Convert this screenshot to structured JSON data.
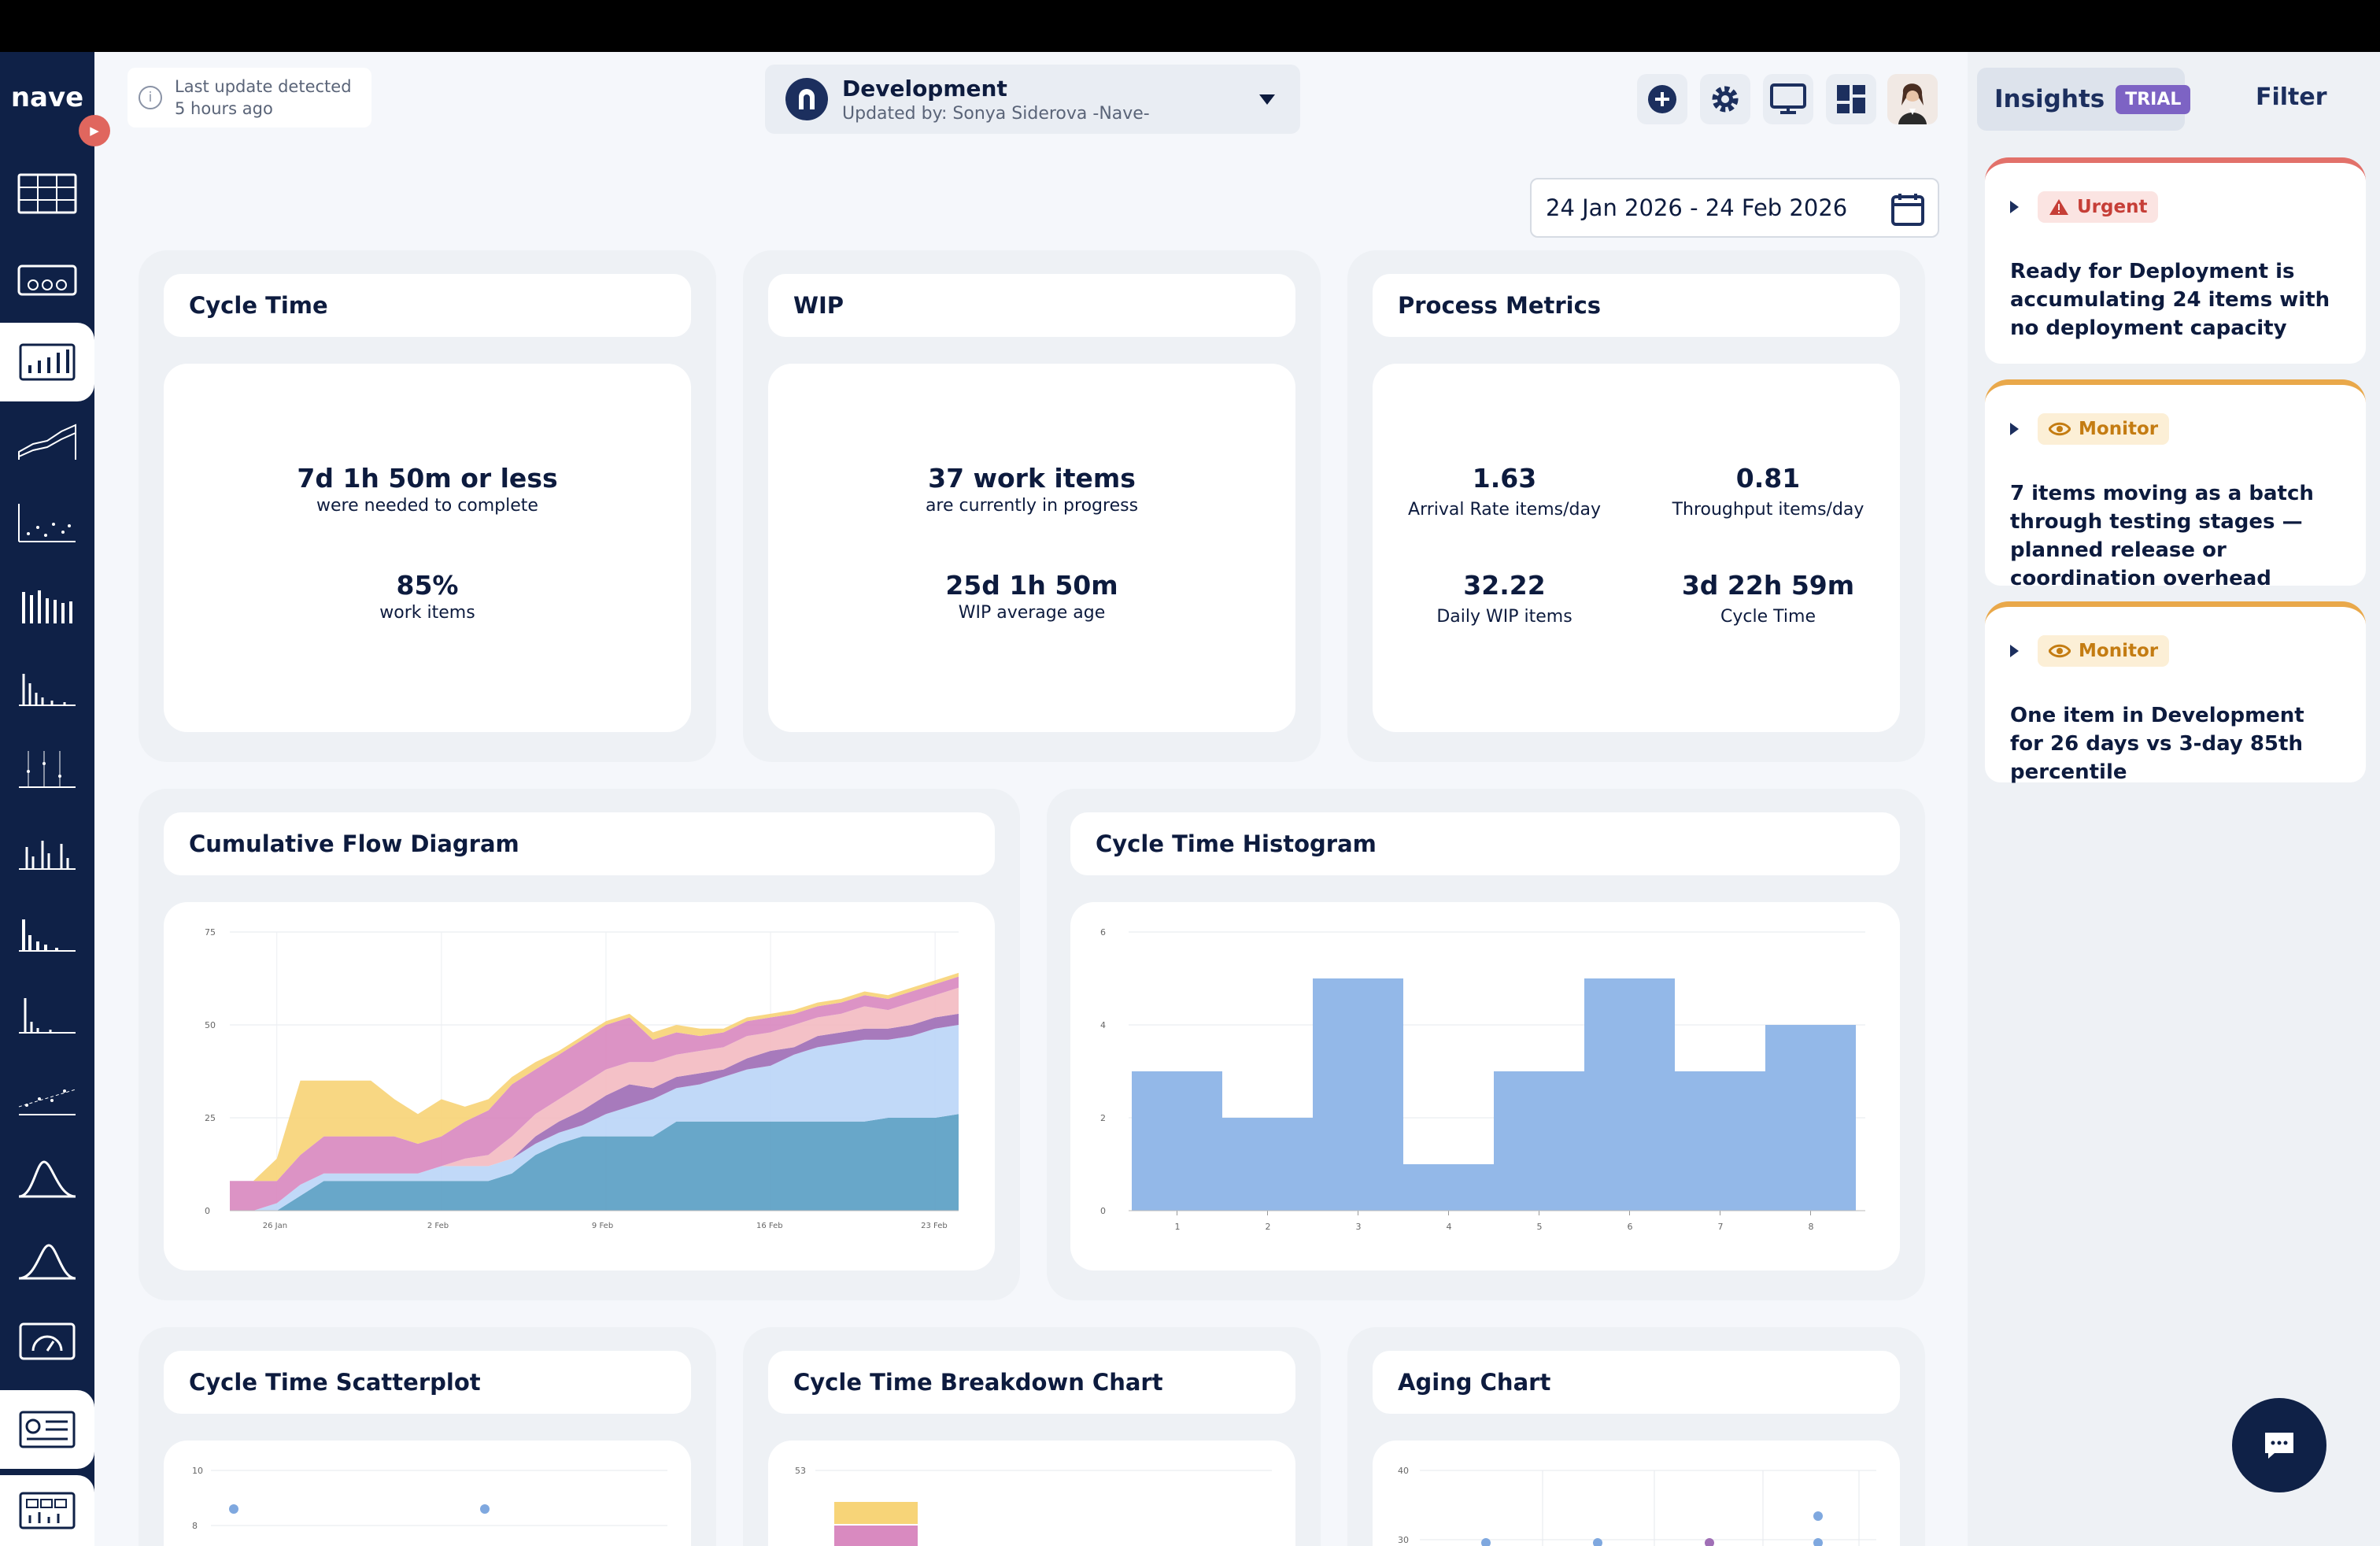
{
  "app": {
    "logo": "nave"
  },
  "header": {
    "last_update_line1": "Last update detected",
    "last_update_line2": "5 hours ago",
    "team_name": "Development",
    "team_updated_by": "Updated by: Sonya Siderova -Nave-"
  },
  "toolbar": {
    "icons": [
      "plus-circle-icon",
      "gear-icon",
      "monitor-icon",
      "dashboard-grid-icon",
      "user-avatar"
    ]
  },
  "date_range": "24 Jan 2026 - 24 Feb 2026",
  "cards": {
    "cycle_time": {
      "title": "Cycle Time",
      "big1": "7d 1h 50m or less",
      "sub1": "were needed to complete",
      "big2": "85%",
      "sub2": "work items"
    },
    "wip": {
      "title": "WIP",
      "big1": "37 work items",
      "sub1": "are currently in progress",
      "big2": "25d 1h 50m",
      "sub2": "WIP average age"
    },
    "process": {
      "title": "Process Metrics",
      "m1_value": "1.63",
      "m1_label": "Arrival Rate items/day",
      "m2_value": "0.81",
      "m2_label": "Throughput items/day",
      "m3_value": "32.22",
      "m3_label": "Daily WIP items",
      "m4_value": "3d 22h 59m",
      "m4_label": "Cycle Time"
    },
    "cfd_title": "Cumulative Flow Diagram",
    "histogram_title": "Cycle Time Histogram",
    "scatter_title": "Cycle Time Scatterplot",
    "breakdown_title": "Cycle Time Breakdown Chart",
    "aging_title": "Aging Chart"
  },
  "insights": {
    "label": "Insights",
    "trial": "TRIAL",
    "filter": "Filter",
    "items": [
      {
        "severity": "Urgent",
        "text": "Ready for Deployment is accumulating 24 items with no deployment capacity"
      },
      {
        "severity": "Monitor",
        "text": "7 items moving as a batch through testing stages — planned release or coordination overhead"
      },
      {
        "severity": "Monitor",
        "text": "One item in Development for 26 days vs 3-day 85th percentile"
      }
    ]
  },
  "colors": {
    "sidebar": "#0f2147",
    "accent_urgent": "#e2716a",
    "accent_monitor": "#e9a84a",
    "trial": "#7d63c4",
    "histogram_bar": "#93b8e8"
  },
  "chart_data": [
    {
      "type": "area",
      "title": "Cumulative Flow Diagram",
      "ylim": [
        0,
        75
      ],
      "yticks": [
        "0",
        "25",
        "50",
        "75"
      ],
      "xticks": [
        "26 Jan",
        "2 Feb",
        "9 Feb",
        "16 Feb",
        "23 Feb"
      ],
      "x": [
        "24 Jan",
        "25 Jan",
        "26 Jan",
        "27 Jan",
        "28 Jan",
        "29 Jan",
        "30 Jan",
        "31 Jan",
        "1 Feb",
        "2 Feb",
        "3 Feb",
        "4 Feb",
        "5 Feb",
        "6 Feb",
        "7 Feb",
        "8 Feb",
        "9 Feb",
        "10 Feb",
        "11 Feb",
        "12 Feb",
        "13 Feb",
        "14 Feb",
        "15 Feb",
        "16 Feb",
        "17 Feb",
        "18 Feb",
        "19 Feb",
        "20 Feb",
        "21 Feb",
        "22 Feb",
        "23 Feb",
        "24 Feb"
      ],
      "series": [
        {
          "color": "#5b9fc4",
          "values": [
            0,
            0,
            0,
            4,
            8,
            8,
            8,
            8,
            8,
            8,
            8,
            8,
            10,
            15,
            18,
            20,
            20,
            20,
            20,
            24,
            24,
            24,
            24,
            24,
            24,
            24,
            24,
            24,
            25,
            25,
            25,
            26
          ]
        },
        {
          "color": "#bcd6f7",
          "values": [
            0,
            0,
            2,
            3,
            2,
            2,
            2,
            2,
            2,
            4,
            4,
            4,
            4,
            3,
            3,
            3,
            6,
            8,
            10,
            9,
            10,
            12,
            14,
            15,
            18,
            20,
            21,
            22,
            21,
            22,
            24,
            24
          ]
        },
        {
          "color": "#a06fb6",
          "values": [
            0,
            0,
            0,
            0,
            0,
            0,
            0,
            0,
            0,
            0,
            0,
            0,
            0,
            2,
            3,
            4,
            5,
            6,
            3,
            3,
            3,
            2,
            3,
            4,
            2,
            3,
            3,
            3,
            3,
            3,
            3,
            3
          ]
        },
        {
          "color": "#f3bcc2",
          "values": [
            0,
            0,
            0,
            0,
            0,
            0,
            0,
            0,
            0,
            0,
            2,
            3,
            6,
            6,
            6,
            7,
            7,
            6,
            7,
            6,
            6,
            6,
            6,
            5,
            6,
            5,
            5,
            6,
            5,
            6,
            6,
            7
          ]
        },
        {
          "color": "#d98ac0",
          "values": [
            8,
            8,
            6,
            8,
            10,
            10,
            10,
            10,
            8,
            8,
            10,
            12,
            14,
            12,
            12,
            12,
            12,
            12,
            6,
            6,
            4,
            4,
            4,
            4,
            3,
            3,
            3,
            3,
            3,
            3,
            3,
            3
          ]
        },
        {
          "color": "#f7d478",
          "values": [
            0,
            0,
            6,
            20,
            15,
            15,
            15,
            10,
            8,
            10,
            4,
            3,
            2,
            2,
            1,
            1,
            1,
            1,
            2,
            2,
            2,
            1,
            1,
            1,
            1,
            1,
            1,
            1,
            1,
            1,
            1,
            1
          ]
        }
      ]
    },
    {
      "type": "bar",
      "title": "Cycle Time Histogram",
      "categories": [
        "1",
        "2",
        "3",
        "4",
        "5",
        "6",
        "7",
        "8"
      ],
      "values": [
        3,
        2,
        5,
        1,
        3,
        5,
        3,
        4
      ],
      "ylim": [
        0,
        6
      ],
      "yticks": [
        "0",
        "2",
        "4",
        "6"
      ]
    },
    {
      "type": "scatter",
      "title": "Cycle Time Scatterplot",
      "yticks": [
        "8",
        "10"
      ],
      "points": [
        [
          0.05,
          8.6
        ],
        [
          0.6,
          8.6
        ]
      ]
    },
    {
      "type": "bar",
      "title": "Cycle Time Breakdown Chart",
      "yticks": [
        "53"
      ]
    },
    {
      "type": "scatter",
      "title": "Aging Chart",
      "yticks": [
        "30",
        "40"
      ]
    }
  ]
}
